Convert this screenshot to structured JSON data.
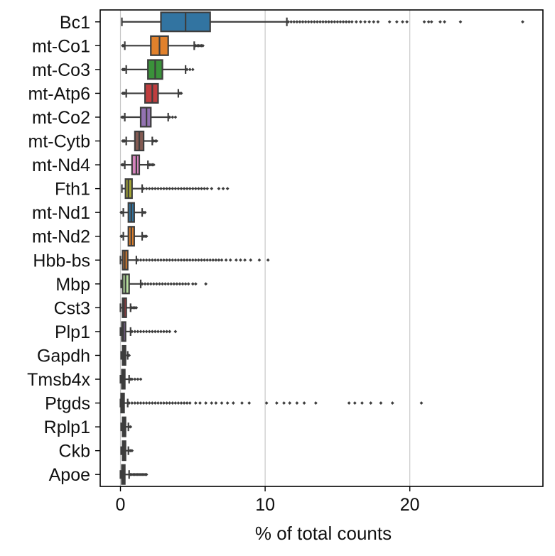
{
  "chart_data": {
    "type": "boxplot",
    "orientation": "horizontal",
    "title": "",
    "xlabel": "% of total counts",
    "ylabel": "",
    "xlim": [
      -1.4,
      29.2
    ],
    "xticks": [
      0,
      10,
      20
    ],
    "grid": "vertical",
    "categories": [
      "Bc1",
      "mt-Co1",
      "mt-Co3",
      "mt-Atp6",
      "mt-Co2",
      "mt-Cytb",
      "mt-Nd4",
      "Fth1",
      "mt-Nd1",
      "mt-Nd2",
      "Hbb-bs",
      "Mbp",
      "Cst3",
      "Plp1",
      "Gapdh",
      "Tmsb4x",
      "Ptgds",
      "Rplp1",
      "Ckb",
      "Apoe"
    ],
    "colors": [
      "#3274a1",
      "#e1812c",
      "#3a923a",
      "#c03d3e",
      "#9372b2",
      "#845b53",
      "#d684bd",
      "#a9aa35",
      "#3274a1",
      "#e1812c",
      "#e1812c",
      "#b8e0a0",
      "#c03d3e",
      "#9372b2",
      "#845b53",
      "#d684bd",
      "#a9aa35",
      "#3274a1",
      "#e1812c",
      "#3a923a"
    ],
    "boxes": [
      {
        "whislo": 0.1,
        "q1": 2.8,
        "med": 4.5,
        "q3": 6.2,
        "whishi": 11.5,
        "fliers": [
          11.6,
          11.8,
          12.0,
          12.2,
          12.4,
          12.6,
          12.8,
          13.0,
          13.2,
          13.4,
          13.6,
          13.8,
          14.0,
          14.2,
          14.4,
          14.6,
          14.8,
          15.0,
          15.2,
          15.4,
          15.6,
          15.8,
          16.0,
          16.3,
          16.6,
          16.9,
          17.2,
          17.5,
          17.8,
          18.6,
          19.1,
          19.5,
          19.8,
          21.0,
          21.3,
          21.5,
          22.1,
          22.4,
          23.5,
          27.8
        ]
      },
      {
        "whislo": 0.3,
        "q1": 2.1,
        "med": 2.7,
        "q3": 3.3,
        "whishi": 5.1,
        "fliers": [
          0.15,
          0.2,
          5.2,
          5.3,
          5.4,
          5.5,
          5.6,
          5.7
        ]
      },
      {
        "whislo": 0.4,
        "q1": 1.9,
        "med": 2.4,
        "q3": 2.9,
        "whishi": 4.5,
        "fliers": [
          0.15,
          0.2,
          0.25,
          0.3,
          4.6,
          4.8,
          5.0
        ]
      },
      {
        "whislo": 0.4,
        "q1": 1.7,
        "med": 2.2,
        "q3": 2.6,
        "whishi": 4.0,
        "fliers": [
          0.15,
          0.2,
          0.25,
          0.3,
          4.1,
          4.2
        ]
      },
      {
        "whislo": 0.3,
        "q1": 1.4,
        "med": 1.8,
        "q3": 2.1,
        "whishi": 3.3,
        "fliers": [
          0.1,
          0.15,
          0.2,
          3.4,
          3.6,
          3.8
        ]
      },
      {
        "whislo": 0.4,
        "q1": 1.0,
        "med": 1.3,
        "q3": 1.6,
        "whishi": 2.2,
        "fliers": [
          0.15,
          0.2,
          0.25,
          0.3,
          2.3,
          2.4,
          2.5
        ]
      },
      {
        "whislo": 0.3,
        "q1": 0.8,
        "med": 1.1,
        "q3": 1.3,
        "whishi": 1.9,
        "fliers": [
          0.1,
          0.15,
          0.2,
          2.0,
          2.1,
          2.2,
          2.3
        ]
      },
      {
        "whislo": 0.1,
        "q1": 0.35,
        "med": 0.55,
        "q3": 0.8,
        "whishi": 1.5,
        "fliers": [
          1.6,
          1.8,
          2.0,
          2.2,
          2.4,
          2.6,
          2.8,
          3.0,
          3.2,
          3.4,
          3.6,
          3.8,
          4.0,
          4.2,
          4.4,
          4.6,
          4.8,
          5.0,
          5.2,
          5.4,
          5.6,
          5.8,
          6.0,
          6.3,
          6.8,
          7.1,
          7.4
        ]
      },
      {
        "whislo": 0.2,
        "q1": 0.55,
        "med": 0.75,
        "q3": 0.95,
        "whishi": 1.5,
        "fliers": [
          0.05,
          0.1,
          1.6,
          1.7
        ]
      },
      {
        "whislo": 0.2,
        "q1": 0.55,
        "med": 0.75,
        "q3": 0.95,
        "whishi": 1.5,
        "fliers": [
          0.05,
          0.1,
          1.6,
          1.7,
          1.8
        ]
      },
      {
        "whislo": 0.0,
        "q1": 0.15,
        "med": 0.3,
        "q3": 0.5,
        "whishi": 1.1,
        "fliers": [
          1.2,
          1.4,
          1.6,
          1.8,
          2.0,
          2.2,
          2.4,
          2.6,
          2.8,
          3.0,
          3.2,
          3.4,
          3.6,
          3.8,
          4.0,
          4.2,
          4.4,
          4.6,
          4.8,
          5.0,
          5.2,
          5.4,
          5.6,
          5.8,
          6.0,
          6.2,
          6.4,
          6.6,
          6.8,
          7.0,
          7.3,
          7.6,
          8.0,
          8.3,
          8.6,
          9.0,
          9.6,
          10.2
        ]
      },
      {
        "whislo": 0.05,
        "q1": 0.15,
        "med": 0.35,
        "q3": 0.6,
        "whishi": 1.4,
        "fliers": [
          1.5,
          1.7,
          1.9,
          2.1,
          2.3,
          2.5,
          2.7,
          2.9,
          3.1,
          3.3,
          3.5,
          3.7,
          3.9,
          4.1,
          4.3,
          4.5,
          4.7,
          5.0,
          5.2,
          5.9
        ]
      },
      {
        "whislo": 0.0,
        "q1": 0.15,
        "med": 0.25,
        "q3": 0.4,
        "whishi": 0.7,
        "fliers": [
          0.8,
          0.9,
          1.0,
          1.1
        ]
      },
      {
        "whislo": 0.0,
        "q1": 0.1,
        "med": 0.2,
        "q3": 0.35,
        "whishi": 0.7,
        "fliers": [
          0.8,
          1.0,
          1.2,
          1.4,
          1.6,
          1.8,
          2.0,
          2.2,
          2.4,
          2.6,
          2.8,
          3.0,
          3.2,
          3.4,
          3.8
        ]
      },
      {
        "whislo": 0.05,
        "q1": 0.15,
        "med": 0.25,
        "q3": 0.35,
        "whishi": 0.5,
        "fliers": [
          0.55,
          0.6
        ]
      },
      {
        "whislo": 0.0,
        "q1": 0.1,
        "med": 0.2,
        "q3": 0.3,
        "whishi": 0.6,
        "fliers": [
          0.7,
          0.8,
          1.0,
          1.2,
          1.4
        ]
      },
      {
        "whislo": 0.0,
        "q1": 0.05,
        "med": 0.15,
        "q3": 0.25,
        "whishi": 0.5,
        "fliers": [
          0.6,
          0.8,
          1.0,
          1.2,
          1.4,
          1.6,
          1.8,
          2.0,
          2.2,
          2.4,
          2.6,
          2.8,
          3.0,
          3.2,
          3.4,
          3.6,
          3.8,
          4.0,
          4.2,
          4.4,
          4.6,
          4.8,
          5.2,
          5.5,
          5.9,
          6.3,
          6.6,
          7.0,
          7.4,
          7.8,
          8.4,
          8.9,
          10.1,
          10.8,
          11.3,
          11.7,
          12.2,
          12.7,
          13.5,
          15.8,
          16.2,
          16.7,
          17.3,
          18.0,
          18.8,
          20.8
        ]
      },
      {
        "whislo": 0.05,
        "q1": 0.15,
        "med": 0.25,
        "q3": 0.35,
        "whishi": 0.55,
        "fliers": [
          0.6,
          0.7
        ]
      },
      {
        "whislo": 0.05,
        "q1": 0.15,
        "med": 0.25,
        "q3": 0.35,
        "whishi": 0.55,
        "fliers": [
          0.6,
          0.7,
          0.8
        ]
      },
      {
        "whislo": 0.0,
        "q1": 0.1,
        "med": 0.2,
        "q3": 0.3,
        "whishi": 0.6,
        "fliers": [
          0.7,
          0.8,
          0.9,
          1.0,
          1.1,
          1.2,
          1.3,
          1.4,
          1.5,
          1.6,
          1.7,
          1.8
        ]
      }
    ]
  }
}
